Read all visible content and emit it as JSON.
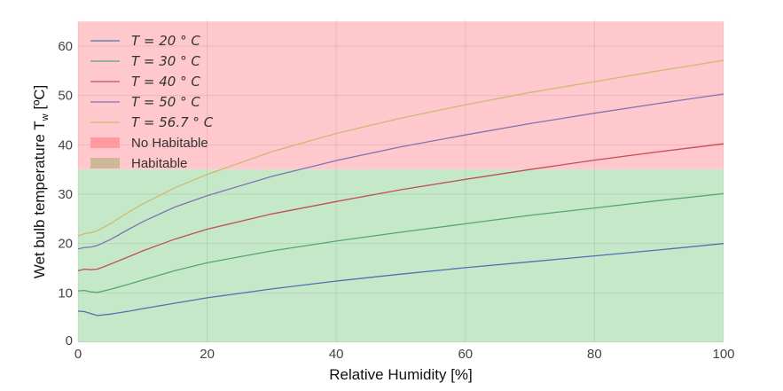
{
  "chart_data": {
    "type": "line",
    "title": "",
    "xlabel": "Relative Humidity [%]",
    "ylabel": "Wet bulb temperature T",
    "ylabel_subscript": "w",
    "ylabel_unit": " [ºC]",
    "xlim": [
      0,
      100
    ],
    "ylim": [
      0,
      65
    ],
    "x_ticks": [
      0,
      20,
      40,
      60,
      80,
      100
    ],
    "y_ticks": [
      0,
      10,
      20,
      30,
      40,
      50,
      60
    ],
    "grid": true,
    "legend_position": "upper left",
    "regions": [
      {
        "name": "No Habitable",
        "y_from": 35,
        "y_to": 65,
        "color": "#ffc8cc",
        "legend_color": "#ff9aa0"
      },
      {
        "name": "Habitable",
        "y_from": 0,
        "y_to": 35,
        "color": "#c5e8c9",
        "legend_color": "#cdb89a"
      }
    ],
    "x": [
      0,
      1,
      2,
      3,
      5,
      8,
      10,
      15,
      20,
      30,
      40,
      50,
      60,
      70,
      80,
      90,
      100
    ],
    "series": [
      {
        "name": "T = 20 °C",
        "label_math": "T = 20 ° C",
        "color": "#4c72b0",
        "values": [
          6.3,
          6.2,
          5.8,
          5.4,
          5.7,
          6.3,
          6.8,
          7.9,
          9.0,
          10.8,
          12.4,
          13.8,
          15.1,
          16.3,
          17.5,
          18.7,
          20.0
        ]
      },
      {
        "name": "T = 30 °C",
        "label_math": "T = 30 ° C",
        "color": "#55a868",
        "values": [
          10.4,
          10.5,
          10.2,
          10.1,
          10.7,
          11.8,
          12.6,
          14.5,
          16.1,
          18.5,
          20.5,
          22.3,
          24.0,
          25.7,
          27.2,
          28.7,
          30.1
        ]
      },
      {
        "name": "T = 40 °C",
        "label_math": "T = 40 ° C",
        "color": "#c44e52",
        "values": [
          14.5,
          14.8,
          14.7,
          14.8,
          15.8,
          17.4,
          18.5,
          20.9,
          22.9,
          26.0,
          28.5,
          30.9,
          33.0,
          35.0,
          36.9,
          38.6,
          40.2
        ]
      },
      {
        "name": "T = 50 °C",
        "label_math": "T = 50 ° C",
        "color": "#8172b2",
        "values": [
          18.9,
          19.2,
          19.3,
          19.6,
          20.8,
          23.0,
          24.4,
          27.4,
          29.7,
          33.6,
          36.8,
          39.6,
          42.0,
          44.3,
          46.4,
          48.4,
          50.3
        ]
      },
      {
        "name": "T = 56.7 °C",
        "label_math": "T = 56.7 ° C",
        "color": "#ccb974",
        "values": [
          21.5,
          22.0,
          22.2,
          22.6,
          24.0,
          26.5,
          28.0,
          31.3,
          34.0,
          38.6,
          42.3,
          45.4,
          48.1,
          50.6,
          52.8,
          55.0,
          57.1
        ]
      }
    ]
  }
}
